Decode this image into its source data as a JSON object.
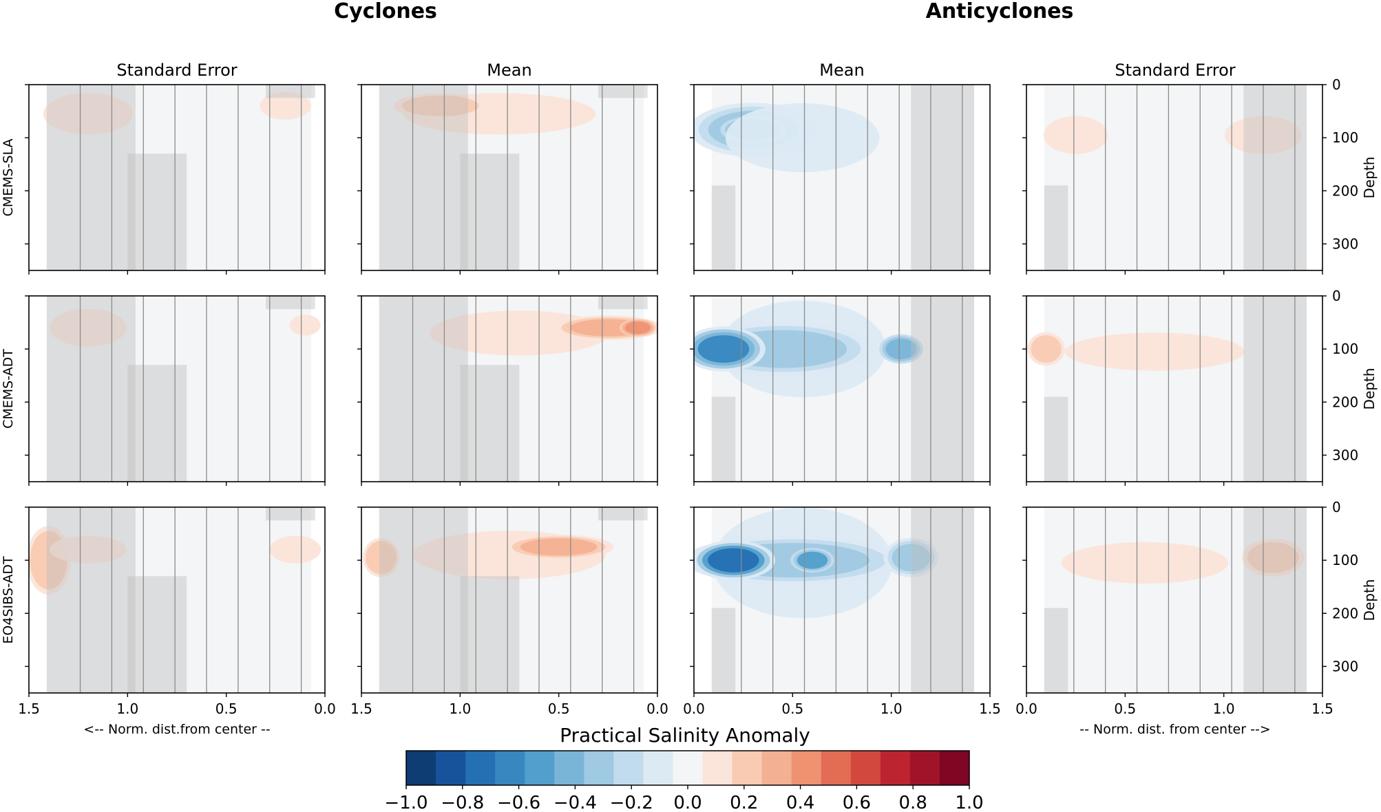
{
  "chart_data": {
    "type": "heatmap",
    "group_titles": [
      "Cyclones",
      "Anticyclones"
    ],
    "column_titles": [
      "Standard Error",
      "Mean",
      "Mean",
      "Standard Error"
    ],
    "row_labels": [
      "CMEMS-SLA",
      "CMEMS-ADT",
      "EO4SIBS-ADT"
    ],
    "ylabel": "Depth",
    "yticks": [
      "0",
      "100",
      "200",
      "300"
    ],
    "ylim": [
      0,
      350
    ],
    "xlabel_left": "<-- Norm. dist.from center --",
    "xlabel_right": "-- Norm. dist. from center -->",
    "xticks_left": [
      "1.5",
      "1.0",
      "0.5",
      "0.0"
    ],
    "xticks_right": [
      "0.0",
      "0.5",
      "1.0",
      "1.5"
    ],
    "xlim_left": [
      1.5,
      0.0
    ],
    "xlim_right": [
      0.0,
      1.5
    ],
    "colorbar": {
      "title": "Practical Salinity Anomaly",
      "min": -1.0,
      "max": 1.0,
      "ticks": [
        "−1.0",
        "−0.8",
        "−0.6",
        "−0.4",
        "−0.2",
        "0.0",
        "0.2",
        "0.4",
        "0.6",
        "0.8",
        "1.0"
      ],
      "colors": [
        "#0e3d74",
        "#17539b",
        "#256fb3",
        "#3887c0",
        "#529fcd",
        "#7ab5d8",
        "#a0c9e2",
        "#c2dced",
        "#dceaf4",
        "#f3f5f6",
        "#fbe4d9",
        "#f9cbb3",
        "#f4b092",
        "#ee9272",
        "#e36c55",
        "#d2483f",
        "#bd2430",
        "#a0142a",
        "#7f0624"
      ]
    },
    "panels": [
      {
        "row": 0,
        "col": 0,
        "stat": "Standard Error",
        "type": "cyclone",
        "blobs": [
          {
            "x": 1.2,
            "y": 55,
            "rx": 0.35,
            "ry": 60,
            "v": 0.08
          },
          {
            "x": 0.2,
            "y": 40,
            "rx": 0.2,
            "ry": 40,
            "v": 0.1
          }
        ]
      },
      {
        "row": 0,
        "col": 1,
        "stat": "Mean",
        "type": "cyclone",
        "blobs": [
          {
            "x": 0.8,
            "y": 55,
            "rx": 0.75,
            "ry": 60,
            "v": 0.13
          },
          {
            "x": 1.1,
            "y": 40,
            "rx": 0.3,
            "ry": 30,
            "v": 0.18
          }
        ]
      },
      {
        "row": 0,
        "col": 2,
        "stat": "Mean",
        "type": "anticyclone",
        "blobs": [
          {
            "x": 0.3,
            "y": 85,
            "rx": 0.35,
            "ry": 55,
            "v": -0.28
          },
          {
            "x": 0.3,
            "y": 85,
            "rx": 0.18,
            "ry": 28,
            "v": -0.42
          },
          {
            "x": 0.55,
            "y": 100,
            "rx": 0.6,
            "ry": 100,
            "v": -0.1
          }
        ]
      },
      {
        "row": 0,
        "col": 3,
        "stat": "Standard Error",
        "type": "anticyclone",
        "blobs": [
          {
            "x": 0.25,
            "y": 95,
            "rx": 0.25,
            "ry": 55,
            "v": 0.1
          },
          {
            "x": 1.2,
            "y": 95,
            "rx": 0.3,
            "ry": 55,
            "v": 0.08
          }
        ]
      },
      {
        "row": 1,
        "col": 0,
        "stat": "Standard Error",
        "type": "cyclone",
        "blobs": [
          {
            "x": 1.2,
            "y": 60,
            "rx": 0.3,
            "ry": 55,
            "v": 0.07
          },
          {
            "x": 0.1,
            "y": 55,
            "rx": 0.12,
            "ry": 30,
            "v": 0.12
          }
        ]
      },
      {
        "row": 1,
        "col": 1,
        "stat": "Mean",
        "type": "cyclone",
        "blobs": [
          {
            "x": 0.7,
            "y": 70,
            "rx": 0.7,
            "ry": 65,
            "v": 0.13
          },
          {
            "x": 0.25,
            "y": 60,
            "rx": 0.3,
            "ry": 25,
            "v": 0.3
          },
          {
            "x": 0.1,
            "y": 60,
            "rx": 0.1,
            "ry": 18,
            "v": 0.42
          }
        ]
      },
      {
        "row": 1,
        "col": 2,
        "stat": "Mean",
        "type": "anticyclone",
        "blobs": [
          {
            "x": 0.55,
            "y": 100,
            "rx": 0.65,
            "ry": 140,
            "v": -0.12
          },
          {
            "x": 0.45,
            "y": 100,
            "rx": 0.5,
            "ry": 55,
            "v": -0.3
          },
          {
            "x": 0.15,
            "y": 100,
            "rx": 0.2,
            "ry": 40,
            "v": -0.65
          },
          {
            "x": 1.05,
            "y": 100,
            "rx": 0.12,
            "ry": 30,
            "v": -0.4
          }
        ]
      },
      {
        "row": 1,
        "col": 3,
        "stat": "Standard Error",
        "type": "anticyclone",
        "blobs": [
          {
            "x": 0.65,
            "y": 105,
            "rx": 0.7,
            "ry": 55,
            "v": 0.12
          },
          {
            "x": 0.1,
            "y": 100,
            "rx": 0.12,
            "ry": 40,
            "v": 0.2
          }
        ]
      },
      {
        "row": 2,
        "col": 0,
        "stat": "Standard Error",
        "type": "cyclone",
        "blobs": [
          {
            "x": 1.4,
            "y": 100,
            "rx": 0.12,
            "ry": 70,
            "v": 0.25
          },
          {
            "x": 1.2,
            "y": 80,
            "rx": 0.3,
            "ry": 40,
            "v": 0.1
          },
          {
            "x": 0.15,
            "y": 80,
            "rx": 0.2,
            "ry": 40,
            "v": 0.09
          }
        ]
      },
      {
        "row": 2,
        "col": 1,
        "stat": "Mean",
        "type": "cyclone",
        "blobs": [
          {
            "x": 0.75,
            "y": 90,
            "rx": 0.75,
            "ry": 70,
            "v": 0.12
          },
          {
            "x": 0.5,
            "y": 75,
            "rx": 0.3,
            "ry": 25,
            "v": 0.28
          },
          {
            "x": 1.4,
            "y": 95,
            "rx": 0.1,
            "ry": 40,
            "v": 0.25
          }
        ]
      },
      {
        "row": 2,
        "col": 2,
        "stat": "Mean",
        "type": "anticyclone",
        "blobs": [
          {
            "x": 0.55,
            "y": 105,
            "rx": 0.7,
            "ry": 160,
            "v": -0.12
          },
          {
            "x": 0.5,
            "y": 100,
            "rx": 0.6,
            "ry": 50,
            "v": -0.32
          },
          {
            "x": 0.2,
            "y": 100,
            "rx": 0.2,
            "ry": 35,
            "v": -0.7
          },
          {
            "x": 0.6,
            "y": 100,
            "rx": 0.12,
            "ry": 25,
            "v": -0.5
          },
          {
            "x": 1.1,
            "y": 95,
            "rx": 0.15,
            "ry": 40,
            "v": -0.35
          }
        ]
      },
      {
        "row": 2,
        "col": 3,
        "stat": "Standard Error",
        "type": "anticyclone",
        "blobs": [
          {
            "x": 0.6,
            "y": 105,
            "rx": 0.65,
            "ry": 60,
            "v": 0.1
          },
          {
            "x": 1.25,
            "y": 95,
            "rx": 0.2,
            "ry": 45,
            "v": 0.2
          }
        ]
      }
    ]
  }
}
